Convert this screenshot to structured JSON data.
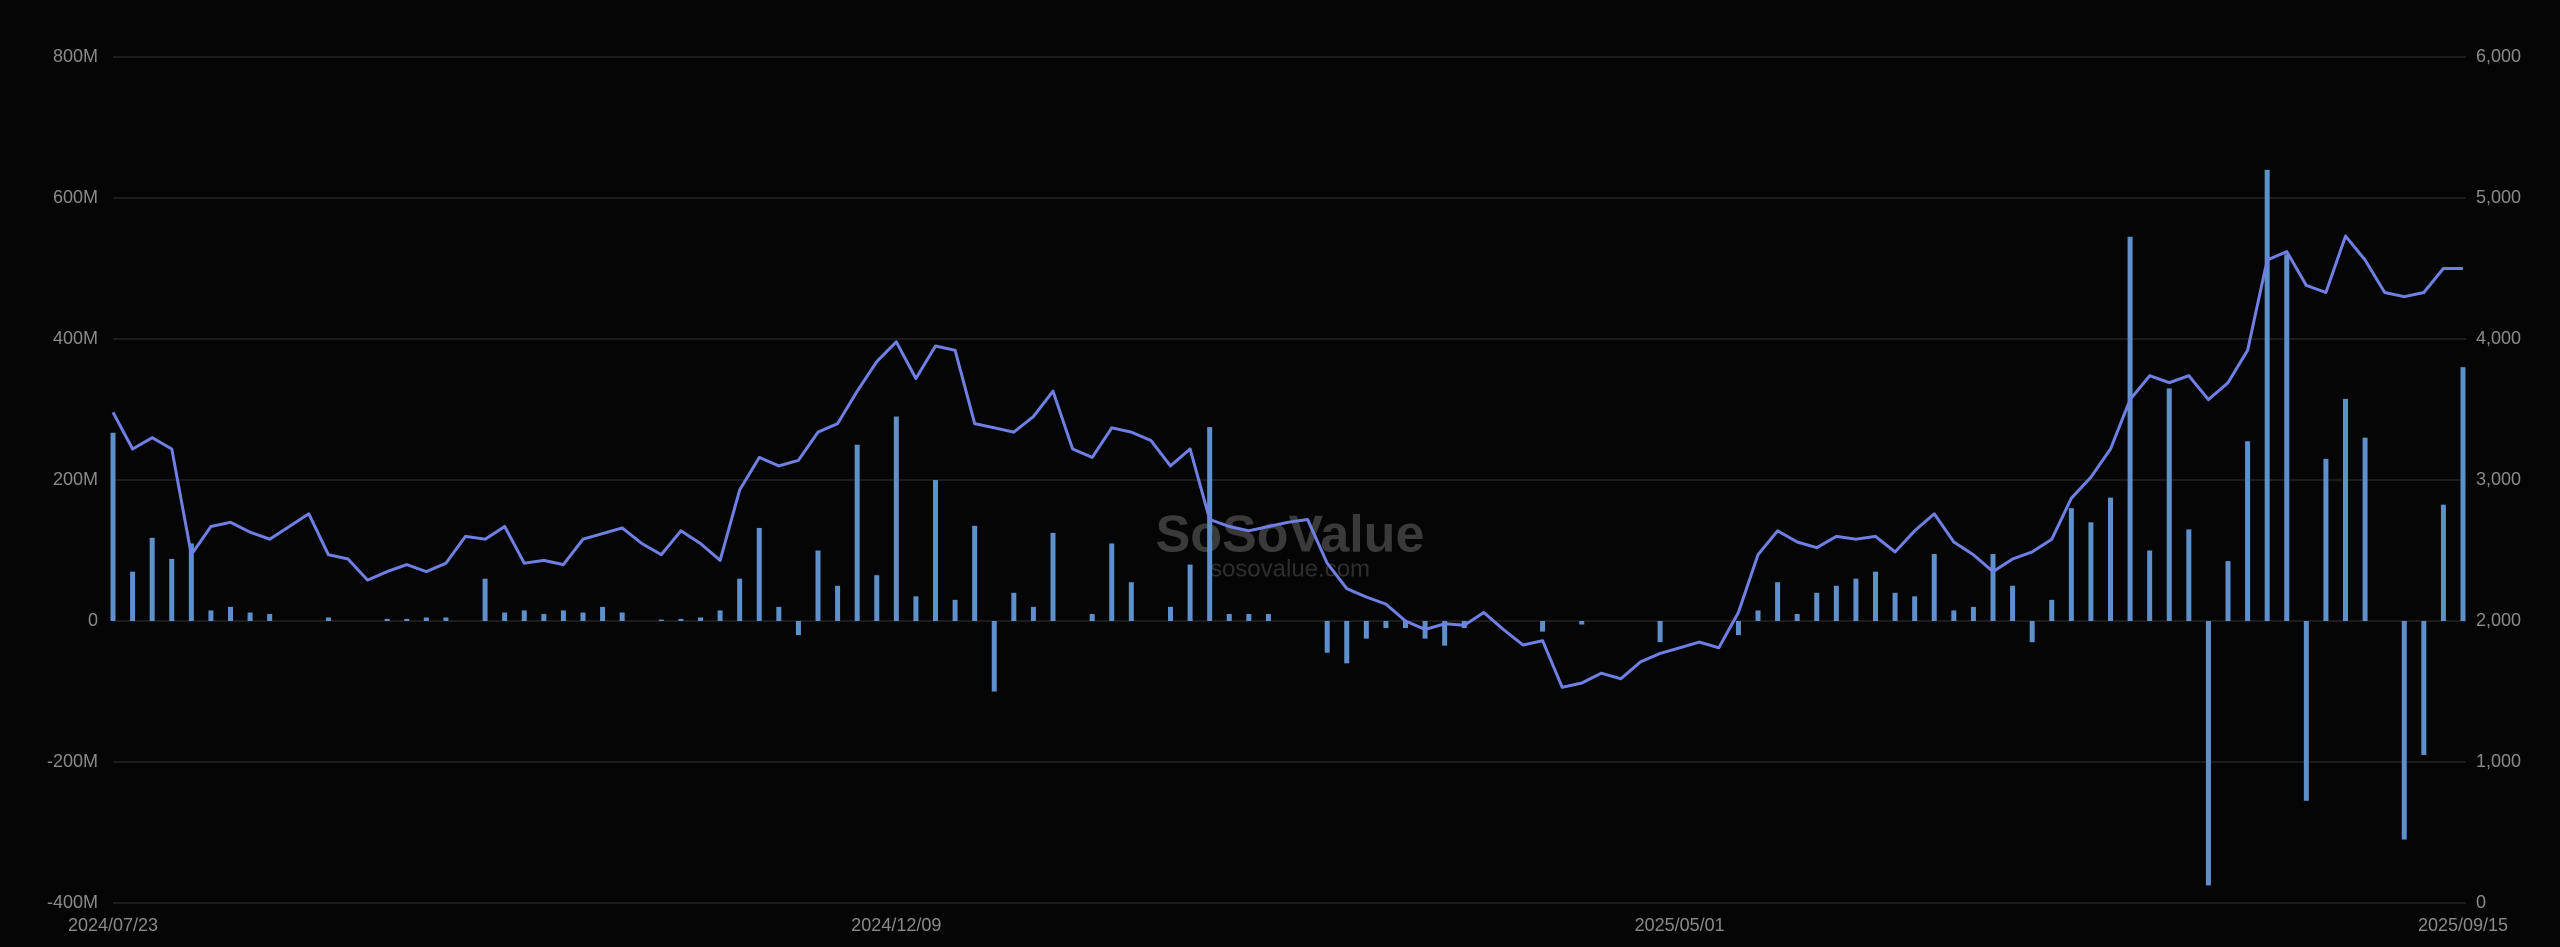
{
  "chart_data": {
    "type": "bar",
    "watermark": "SoSoValue",
    "watermark_url": "sosovalue.com",
    "categories": [
      "2024/07/23",
      null,
      null,
      null,
      null,
      null,
      null,
      null,
      null,
      null,
      null,
      null,
      null,
      null,
      null,
      null,
      null,
      null,
      null,
      null,
      null,
      null,
      null,
      null,
      null,
      null,
      null,
      null,
      null,
      null,
      null,
      null,
      null,
      null,
      null,
      null,
      null,
      null,
      null,
      null,
      "2024/12/09",
      null,
      null,
      null,
      null,
      null,
      null,
      null,
      null,
      null,
      null,
      null,
      null,
      null,
      null,
      null,
      null,
      null,
      null,
      null,
      null,
      null,
      null,
      null,
      null,
      null,
      null,
      null,
      null,
      null,
      null,
      null,
      null,
      null,
      null,
      null,
      null,
      null,
      null,
      null,
      "2025/05/01",
      null,
      null,
      null,
      null,
      null,
      null,
      null,
      null,
      null,
      null,
      null,
      null,
      null,
      null,
      null,
      null,
      null,
      null,
      null,
      null,
      null,
      null,
      null,
      null,
      null,
      null,
      null,
      null,
      null,
      null,
      null,
      null,
      null,
      null,
      null,
      null,
      null,
      null,
      null,
      "2025/09/15"
    ],
    "series": [
      {
        "type": "bar",
        "color": "#5e90cc",
        "values": [
          267,
          70,
          118,
          88,
          110,
          15,
          20,
          12,
          10,
          0,
          0,
          5,
          0,
          0,
          3,
          3,
          5,
          5,
          0,
          60,
          12,
          15,
          10,
          15,
          12,
          20,
          12,
          0,
          2,
          3,
          5,
          15,
          60,
          132,
          20,
          -20,
          100,
          50,
          250,
          65,
          290,
          35,
          200,
          30,
          135,
          -100,
          40,
          20,
          125,
          0,
          10,
          110,
          55,
          0,
          20,
          80,
          275,
          10,
          10,
          10,
          0,
          0,
          -45,
          -60,
          -25,
          -10,
          -10,
          -25,
          -35,
          -10,
          0,
          0,
          0,
          -15,
          0,
          -5,
          0,
          0,
          0,
          -30,
          0,
          0,
          0,
          -20,
          15,
          55,
          10,
          40,
          50,
          60,
          70,
          40,
          35,
          95,
          15,
          20,
          95,
          50,
          -30,
          30,
          160,
          140,
          175,
          545,
          100,
          330,
          130,
          -375,
          85,
          255,
          640,
          520,
          -255,
          230,
          315,
          260,
          0,
          -310,
          -190,
          165,
          360
        ]
      },
      {
        "type": "line",
        "axis": "y2",
        "color": "#6f7fe3",
        "values": [
          3480,
          3220,
          3300,
          3220,
          2470,
          2670,
          2700,
          2630,
          2580,
          2670,
          2760,
          2470,
          2440,
          2290,
          2350,
          2400,
          2350,
          2410,
          2600,
          2580,
          2670,
          2410,
          2430,
          2400,
          2580,
          2620,
          2660,
          2550,
          2470,
          2640,
          2550,
          2430,
          2930,
          3160,
          3100,
          3140,
          3340,
          3400,
          3630,
          3840,
          3980,
          3720,
          3950,
          3920,
          3400,
          3370,
          3340,
          3450,
          3630,
          3220,
          3160,
          3370,
          3340,
          3280,
          3100,
          3220,
          2720,
          2670,
          2640,
          2670,
          2700,
          2720,
          2410,
          2230,
          2170,
          2120,
          2000,
          1940,
          1980,
          1970,
          2060,
          1940,
          1830,
          1860,
          1530,
          1560,
          1630,
          1590,
          1710,
          1770,
          1810,
          1850,
          1810,
          2060,
          2470,
          2640,
          2560,
          2520,
          2600,
          2580,
          2600,
          2490,
          2640,
          2760,
          2560,
          2470,
          2350,
          2440,
          2490,
          2580,
          2870,
          3020,
          3220,
          3570,
          3740,
          3690,
          3740,
          3570,
          3690,
          3920,
          4560,
          4620,
          4380,
          4330,
          4730,
          4560,
          4330,
          4300,
          4330,
          4500,
          4500
        ]
      }
    ],
    "ylim": [
      -400,
      800
    ],
    "yticks": [
      {
        "value": -400,
        "label": "-400M"
      },
      {
        "value": -200,
        "label": "-200M"
      },
      0,
      {
        "value": 200,
        "label": "200M"
      },
      {
        "value": 400,
        "label": "400M"
      },
      {
        "value": 600,
        "label": "600M"
      },
      {
        "value": 800,
        "label": "800M"
      }
    ],
    "y2lim": [
      0,
      6000
    ],
    "y2ticks": [
      0,
      {
        "value": 1000,
        "label": "1,000"
      },
      {
        "value": 2000,
        "label": "2,000"
      },
      {
        "value": 3000,
        "label": "3,000"
      },
      {
        "value": 4000,
        "label": "4,000"
      },
      {
        "value": 5000,
        "label": "5,000"
      },
      {
        "value": 6000,
        "label": "6,000"
      }
    ],
    "grid": true
  }
}
